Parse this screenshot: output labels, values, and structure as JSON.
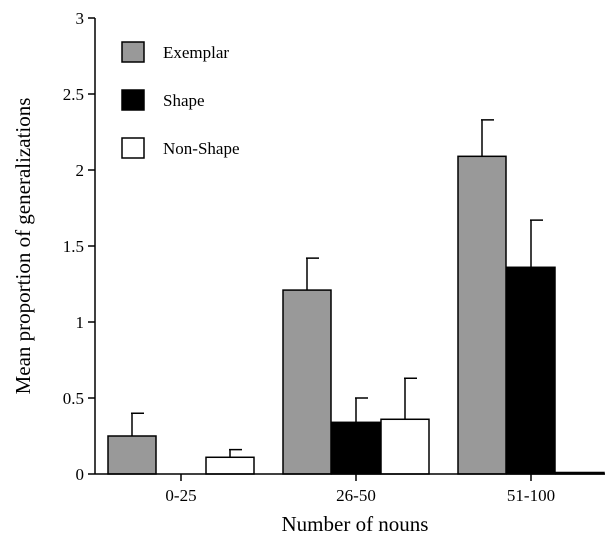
{
  "chart_data": {
    "type": "bar",
    "categories": [
      "0-25",
      "26-50",
      "51-100"
    ],
    "series": [
      {
        "name": "Exemplar",
        "color": "#999999",
        "values": [
          0.25,
          1.21,
          2.09
        ],
        "errors": [
          0.15,
          0.21,
          0.24
        ]
      },
      {
        "name": "Shape",
        "color": "#000000",
        "values": [
          0.0,
          0.34,
          1.36
        ],
        "errors": [
          0.0,
          0.16,
          0.31
        ]
      },
      {
        "name": "Non-Shape",
        "color": "#ffffff",
        "values": [
          0.11,
          0.36,
          0.01
        ],
        "errors": [
          0.05,
          0.27,
          0.0
        ]
      }
    ],
    "title": "",
    "xlabel": "Number of nouns",
    "ylabel": "Mean proportion of generalizations",
    "ylim": [
      0,
      3
    ],
    "yticks": [
      0,
      0.5,
      1,
      1.5,
      2,
      2.5,
      3
    ],
    "ytick_labels": [
      "0",
      "0.5",
      "1",
      "1.5",
      "2",
      "2.5",
      "3"
    ],
    "grid": false,
    "legend_position": "top-left"
  }
}
